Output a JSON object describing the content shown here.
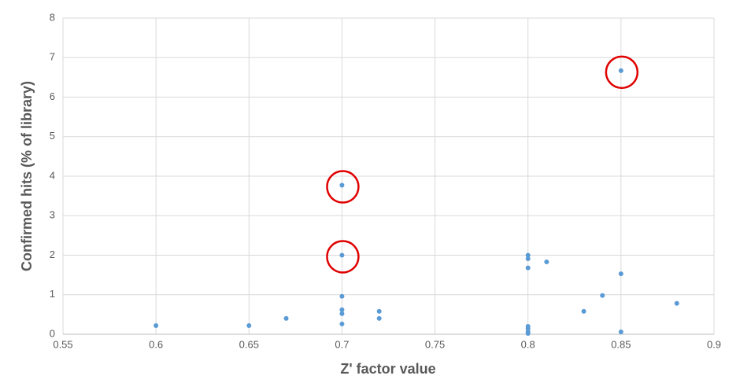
{
  "chart_data": {
    "type": "scatter",
    "x_label": "Z' factor value",
    "y_label": "Confirmed hits (% of library)",
    "x": [
      0.6,
      0.65,
      0.67,
      0.7,
      0.7,
      0.7,
      0.7,
      0.7,
      0.7,
      0.72,
      0.72,
      0.8,
      0.8,
      0.8,
      0.8,
      0.8,
      0.8,
      0.8,
      0.81,
      0.83,
      0.84,
      0.85,
      0.85,
      0.85,
      0.88
    ],
    "values": [
      0.22,
      0.22,
      0.4,
      3.77,
      2.0,
      0.96,
      0.62,
      0.52,
      0.26,
      0.58,
      0.4,
      2.0,
      1.91,
      1.68,
      0.2,
      0.14,
      0.06,
      0.02,
      1.83,
      0.58,
      0.98,
      6.67,
      1.53,
      0.06,
      0.78
    ],
    "color": "#5b9bd5",
    "highlighted": [
      3,
      4,
      21
    ],
    "highlight_color": "#e00000",
    "xlim": [
      0.55,
      0.9
    ],
    "xticks": [
      0.55,
      0.6,
      0.65,
      0.7,
      0.75,
      0.8,
      0.85,
      0.9
    ],
    "ylim": [
      0,
      8
    ],
    "yticks": [
      0,
      1,
      2,
      3,
      4,
      5,
      6,
      7,
      8
    ],
    "grid": true
  }
}
